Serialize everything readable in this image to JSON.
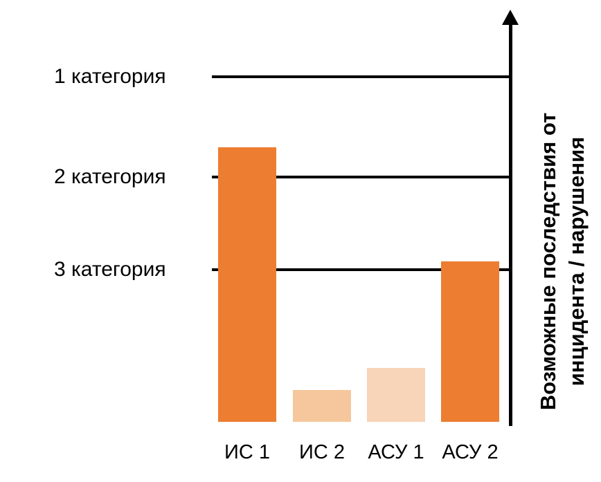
{
  "chart_data": {
    "type": "bar",
    "title": "",
    "categories": [
      "ИС 1",
      "ИС 2",
      "АСУ 1",
      "АСУ 2"
    ],
    "values": [
      68.5,
      8,
      13.5,
      40
    ],
    "bar_colors": [
      "#ED7D31",
      "#F6C79C",
      "#F8D4B8",
      "#ED7D31"
    ],
    "thresholds": [
      {
        "label": "1 категория",
        "value": 86
      },
      {
        "label": "2 категория",
        "value": 61
      },
      {
        "label": "3 категория",
        "value": 38
      }
    ],
    "xlabel": "",
    "ylabel": "Возможные последствия от инцидента / нарушения",
    "ylabel_lines": [
      "Возможные последствия от",
      "инцидента / нарушения"
    ],
    "ylim": [
      0,
      100
    ],
    "grid": false,
    "legend": false,
    "axis_color": "#000000",
    "background": "#FFFFFF"
  }
}
